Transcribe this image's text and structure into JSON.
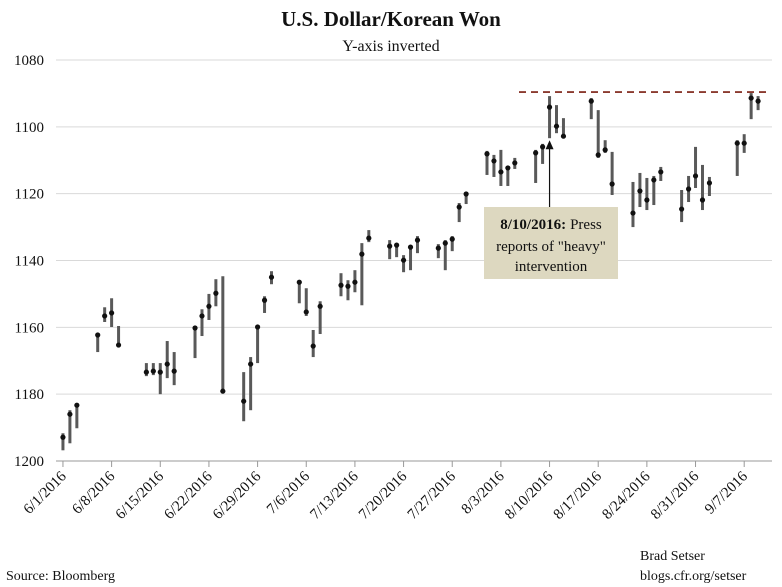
{
  "chart_data": {
    "type": "hlc",
    "title": "U.S. Dollar/Korean Won",
    "subtitle": "Y-axis inverted",
    "source": "Source: Bloomberg",
    "credit": [
      "Brad Setser",
      "blogs.cfr.org/setser"
    ],
    "y_inverted": true,
    "ylim": [
      1080,
      1200
    ],
    "yticks": [
      1080,
      1100,
      1120,
      1140,
      1160,
      1180,
      1200
    ],
    "xlim": [
      "5/31/2016",
      "9/11/2016"
    ],
    "xticks": [
      "6/1/2016",
      "6/8/2016",
      "6/15/2016",
      "6/22/2016",
      "6/29/2016",
      "7/6/2016",
      "7/13/2016",
      "7/20/2016",
      "7/27/2016",
      "8/3/2016",
      "8/10/2016",
      "8/17/2016",
      "8/24/2016",
      "8/31/2016",
      "9/7/2016"
    ],
    "grid": true,
    "bar_color": "#595959",
    "close_color": "#111111",
    "x": [
      "6/1/2016",
      "6/2/2016",
      "6/3/2016",
      "6/6/2016",
      "6/7/2016",
      "6/8/2016",
      "6/9/2016",
      "6/13/2016",
      "6/14/2016",
      "6/15/2016",
      "6/16/2016",
      "6/17/2016",
      "6/20/2016",
      "6/21/2016",
      "6/22/2016",
      "6/23/2016",
      "6/24/2016",
      "6/27/2016",
      "6/28/2016",
      "6/29/2016",
      "6/30/2016",
      "7/1/2016",
      "7/5/2016",
      "7/6/2016",
      "7/7/2016",
      "7/8/2016",
      "7/11/2016",
      "7/12/2016",
      "7/13/2016",
      "7/14/2016",
      "7/15/2016",
      "7/18/2016",
      "7/19/2016",
      "7/20/2016",
      "7/21/2016",
      "7/22/2016",
      "7/25/2016",
      "7/26/2016",
      "7/27/2016",
      "7/28/2016",
      "7/29/2016",
      "8/1/2016",
      "8/2/2016",
      "8/3/2016",
      "8/4/2016",
      "8/5/2016",
      "8/8/2016",
      "8/9/2016",
      "8/10/2016",
      "8/11/2016",
      "8/12/2016",
      "8/16/2016",
      "8/17/2016",
      "8/18/2016",
      "8/19/2016",
      "8/22/2016",
      "8/23/2016",
      "8/24/2016",
      "8/25/2016",
      "8/26/2016",
      "8/29/2016",
      "8/30/2016",
      "8/31/2016",
      "9/1/2016",
      "9/2/2016",
      "9/6/2016",
      "9/7/2016",
      "9/8/2016",
      "9/9/2016"
    ],
    "low": [
      1191.7,
      1184.8,
      1183,
      1161.7,
      1154,
      1151.3,
      1159.6,
      1170.7,
      1170.7,
      1170.7,
      1164.1,
      1167.4,
      1159.9,
      1154.6,
      1150,
      1145.6,
      1144.7,
      1173.4,
      1168.9,
      1159.6,
      1150.7,
      1143.2,
      1145.9,
      1148.3,
      1160.8,
      1152.2,
      1143.8,
      1145.9,
      1142.9,
      1134.8,
      1130.9,
      1133.9,
      1134.8,
      1138.4,
      1135.4,
      1132.7,
      1135.1,
      1133.9,
      1132.7,
      1122.8,
      1119.5,
      1107.2,
      1108.4,
      1106.9,
      1112,
      1109.3,
      1106.9,
      1105.1,
      1090.8,
      1093.5,
      1097.4,
      1091.4,
      1095,
      1104,
      1107.5,
      1116.5,
      1113.8,
      1115.3,
      1114.7,
      1112,
      1118.9,
      1114.7,
      1106,
      1111.4,
      1115,
      1104,
      1102.2,
      1089.9,
      1090.8
    ],
    "high": [
      1196.8,
      1194.7,
      1190.2,
      1167.4,
      1158.4,
      1159.9,
      1165.3,
      1174.6,
      1174.3,
      1180,
      1175.2,
      1177.3,
      1169.2,
      1162.6,
      1157.8,
      1153.7,
      1179.7,
      1188.1,
      1184.8,
      1170.7,
      1155.7,
      1147.1,
      1152.8,
      1156.6,
      1168.9,
      1162,
      1150.7,
      1151.9,
      1149.5,
      1153.4,
      1134.5,
      1139.6,
      1139,
      1143.5,
      1142.9,
      1137.8,
      1139.3,
      1142.9,
      1137.2,
      1128.5,
      1123.1,
      1114.4,
      1115,
      1117.7,
      1117.7,
      1112.6,
      1116.8,
      1111.1,
      1103.4,
      1101.9,
      1103.1,
      1097.7,
      1109.3,
      1107.8,
      1120.4,
      1130,
      1124,
      1124.9,
      1123.4,
      1116.2,
      1128.5,
      1122.5,
      1118.3,
      1124.9,
      1120.7,
      1114.7,
      1107.8,
      1097.7,
      1095
    ],
    "close": [
      1192.9,
      1186,
      1183.3,
      1162.3,
      1156.6,
      1155.7,
      1165.3,
      1173.4,
      1173.1,
      1173.4,
      1171,
      1173.1,
      1160.2,
      1156.6,
      1153.7,
      1149.8,
      1179.1,
      1182.1,
      1171,
      1159.9,
      1151.9,
      1145,
      1146.5,
      1155.4,
      1165.6,
      1153.7,
      1147.4,
      1147.7,
      1146.5,
      1138.1,
      1133.3,
      1135.7,
      1135.4,
      1139.9,
      1136,
      1133.9,
      1136.3,
      1134.8,
      1133.6,
      1124,
      1120.1,
      1108.1,
      1110.2,
      1113.5,
      1112.3,
      1110.8,
      1107.8,
      1106,
      1094.1,
      1099.8,
      1102.8,
      1092.3,
      1108.4,
      1106.9,
      1117.1,
      1125.8,
      1119.2,
      1121.9,
      1115.9,
      1113.5,
      1124.6,
      1118.6,
      1114.7,
      1121.9,
      1116.8,
      1104.9,
      1104.9,
      1091.4,
      1092.3
    ],
    "reference_line": 1089.6,
    "annotation": {
      "bold": "8/10/2016:",
      "lines": [
        "Press",
        "reports of \"heavy\"",
        "intervention"
      ]
    }
  }
}
